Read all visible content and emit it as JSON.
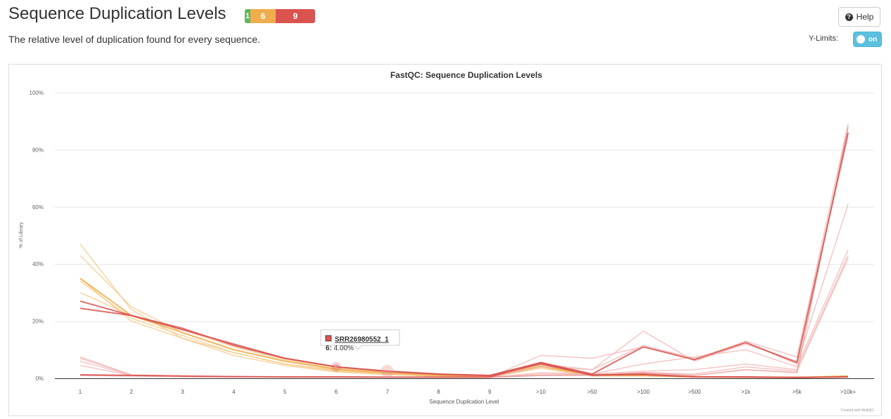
{
  "header": {
    "title": "Sequence Duplication Levels",
    "subtitle": "The relative level of duplication found for every sequence.",
    "help_label": "Help",
    "help_icon": "question-circle-icon",
    "ylimits_label": "Y-Limits:",
    "toggle_label": "on"
  },
  "status_badges": [
    {
      "count": "1",
      "status": "pass",
      "color": "#5cb85c"
    },
    {
      "count": "6",
      "status": "warn",
      "color": "#f0ad4e"
    },
    {
      "count": "9",
      "status": "fail",
      "color": "#d9534f"
    }
  ],
  "colors": {
    "pass": "#5cb85c",
    "warn": "#f0ad4e",
    "fail": "#d9534f",
    "accent": "#5bc0de"
  },
  "tooltip": {
    "sample": "SRR26980552_1",
    "category": "6",
    "value": "4.00%"
  },
  "credit": "Created with MultiQC",
  "chart_data": {
    "type": "line",
    "title": "FastQC: Sequence Duplication Levels",
    "xlabel": "Sequence Duplication Level",
    "ylabel": "% of Library",
    "ylim": [
      0,
      100
    ],
    "yticks": [
      "0%",
      "20%",
      "40%",
      "60%",
      "80%",
      "100%"
    ],
    "categories": [
      "1",
      "2",
      "3",
      "4",
      "5",
      "6",
      "7",
      "8",
      "9",
      ">10",
      ">50",
      ">100",
      ">500",
      ">1k",
      ">5k",
      ">10k+"
    ],
    "grid": true,
    "series": [
      {
        "color": "#f5c98a",
        "values": [
          47,
          24,
          14,
          9,
          5,
          2.5,
          1.5,
          0.8,
          0.5,
          4,
          1,
          1,
          0.5,
          0.5,
          0.3,
          0.5
        ]
      },
      {
        "color": "#f5c98a",
        "values": [
          43,
          25,
          16,
          10,
          6,
          3,
          1.8,
          1,
          0.6,
          4.5,
          1.2,
          1,
          0.5,
          0.4,
          0.3,
          0.6
        ]
      },
      {
        "color": "#f5c98a",
        "values": [
          35,
          20,
          14,
          8,
          4.5,
          2.2,
          1.3,
          0.7,
          0.4,
          3.5,
          0.8,
          0.8,
          0.4,
          0.3,
          0.2,
          0.4
        ]
      },
      {
        "color": "#f5c98a",
        "values": [
          34,
          21,
          15,
          9,
          5,
          2.8,
          1.6,
          0.9,
          0.5,
          4,
          1,
          0.9,
          0.5,
          0.4,
          0.3,
          0.5
        ]
      },
      {
        "color": "#f5c98a",
        "values": [
          30,
          22,
          17,
          11,
          6.5,
          3.5,
          2,
          1.1,
          0.7,
          5,
          1.2,
          1.1,
          0.6,
          0.5,
          0.4,
          0.7
        ]
      },
      {
        "color": "#f0ad4e",
        "values": [
          35,
          22,
          16,
          10,
          6,
          3.2,
          1.9,
          1,
          0.6,
          4.2,
          1.1,
          1,
          0.5,
          0.4,
          0.3,
          0.8
        ]
      },
      {
        "color": "#f2b8b6",
        "values": [
          7.5,
          1.2,
          0.8,
          0.6,
          0.5,
          0.5,
          0.4,
          0.4,
          0.4,
          8,
          7,
          11,
          6.5,
          13,
          7.5,
          89
        ]
      },
      {
        "color": "#f2b8b6",
        "values": [
          7,
          1.2,
          0.8,
          0.6,
          0.5,
          0.5,
          0.4,
          0.4,
          0.4,
          5,
          3,
          16.5,
          6,
          12,
          6,
          85
        ]
      },
      {
        "color": "#f2b8b6",
        "values": [
          6,
          1.1,
          0.7,
          0.5,
          0.5,
          0.4,
          0.4,
          0.3,
          0.3,
          4,
          3,
          11.5,
          7,
          12.5,
          5,
          61
        ]
      },
      {
        "color": "#f2b8b6",
        "values": [
          4.5,
          1,
          0.7,
          0.5,
          0.4,
          0.4,
          0.3,
          0.3,
          0.3,
          2,
          1.5,
          5,
          7.5,
          10,
          4,
          45
        ]
      },
      {
        "color": "#f2b8b6",
        "values": [
          1,
          0.8,
          0.6,
          0.5,
          0.4,
          0.4,
          0.3,
          0.3,
          0.3,
          1.5,
          1.5,
          2.5,
          3,
          5,
          3,
          43
        ]
      },
      {
        "color": "#f2b8b6",
        "values": [
          1,
          0.8,
          0.5,
          0.4,
          0.4,
          0.3,
          0.3,
          0.3,
          0.3,
          1,
          1,
          2,
          1.5,
          4,
          2.5,
          42
        ]
      },
      {
        "color": "#e8928f",
        "values": [
          1.2,
          1,
          0.7,
          0.6,
          0.5,
          0.5,
          0.4,
          0.4,
          0.4,
          1,
          1.2,
          2,
          1,
          3,
          2,
          88
        ]
      },
      {
        "color": "#d9534f",
        "values": [
          27,
          22,
          17,
          12,
          7,
          4,
          2.5,
          1.5,
          1,
          5.5,
          1,
          1.5,
          0.5,
          0.5,
          0.3,
          0.5
        ]
      },
      {
        "color": "#d9534f",
        "values": [
          24.5,
          22,
          17.5,
          11.5,
          7,
          4,
          2.4,
          1.4,
          0.9,
          5,
          1.2,
          1.3,
          0.5,
          0.4,
          0.3,
          0.5
        ]
      },
      {
        "color": "#d9534f",
        "values": [
          1.2,
          1,
          0.8,
          0.6,
          0.5,
          0.5,
          0.4,
          0.4,
          0.4,
          5.5,
          1.5,
          11,
          6.5,
          12.5,
          5.5,
          86
        ]
      }
    ]
  }
}
